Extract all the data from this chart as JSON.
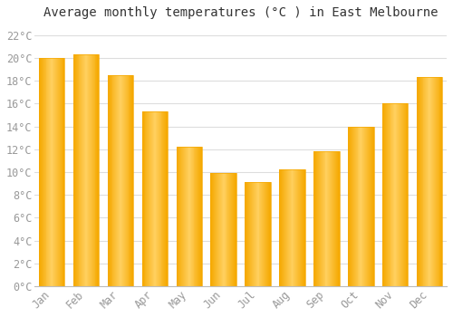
{
  "title": "Average monthly temperatures (°C ) in East Melbourne",
  "months": [
    "Jan",
    "Feb",
    "Mar",
    "Apr",
    "May",
    "Jun",
    "Jul",
    "Aug",
    "Sep",
    "Oct",
    "Nov",
    "Dec"
  ],
  "values": [
    20.0,
    20.3,
    18.5,
    15.3,
    12.2,
    9.9,
    9.1,
    10.2,
    11.8,
    14.0,
    16.0,
    18.3
  ],
  "bar_color_light": "#FFD060",
  "bar_color_dark": "#F5A800",
  "background_color": "#ffffff",
  "plot_bg_color": "#f8f8f8",
  "grid_color": "#dddddd",
  "ylim": [
    0,
    23
  ],
  "yticks": [
    0,
    2,
    4,
    6,
    8,
    10,
    12,
    14,
    16,
    18,
    20,
    22
  ],
  "title_fontsize": 10,
  "tick_fontsize": 8.5,
  "tick_label_color": "#999999",
  "title_color": "#333333"
}
